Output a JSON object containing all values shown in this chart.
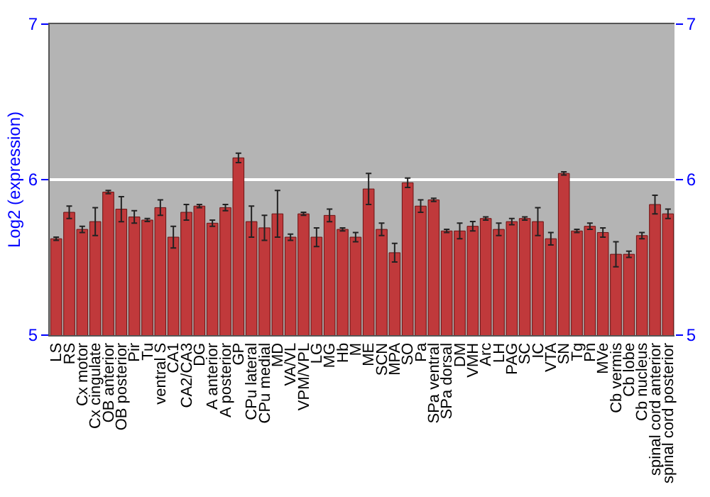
{
  "chart_data": {
    "type": "bar",
    "ylabel": "Log2 (expression)",
    "categories": [
      "LS",
      "RS",
      "Cx motor",
      "Cx cingulate",
      "OB anterior",
      "OB posterior",
      "Pir",
      "Tu",
      "ventral S",
      "CA1",
      "CA2/CA3",
      "DG",
      "A anterior",
      "A posterior",
      "GP",
      "CPu lateral",
      "CPu medial",
      "MD",
      "VA/VL",
      "VPM/VPL",
      "LG",
      "MG",
      "Hb",
      "M",
      "ME",
      "SCN",
      "MPA",
      "SO",
      "Pa",
      "SPa ventral",
      "SPa dorsal",
      "DM",
      "VMH",
      "Arc",
      "LH",
      "PAG",
      "SC",
      "IC",
      "VTA",
      "SN",
      "Tg",
      "Pn",
      "MVe",
      "Cb vermis",
      "Cb lobe",
      "Cb nucleus",
      "spinal cord anterior",
      "spinal cord posterior"
    ],
    "values": [
      5.62,
      5.79,
      5.68,
      5.73,
      5.92,
      5.81,
      5.76,
      5.74,
      5.82,
      5.63,
      5.79,
      5.83,
      5.72,
      5.82,
      6.14,
      5.73,
      5.69,
      5.78,
      5.63,
      5.78,
      5.63,
      5.77,
      5.68,
      5.63,
      5.94,
      5.68,
      5.53,
      5.98,
      5.83,
      5.87,
      5.67,
      5.67,
      5.7,
      5.75,
      5.68,
      5.73,
      5.75,
      5.73,
      5.62,
      6.04,
      5.67,
      5.7,
      5.66,
      5.52,
      5.52,
      5.64,
      5.84,
      5.78
    ],
    "errors": [
      0.01,
      0.04,
      0.02,
      0.09,
      0.01,
      0.08,
      0.04,
      0.01,
      0.05,
      0.07,
      0.05,
      0.01,
      0.02,
      0.02,
      0.03,
      0.1,
      0.08,
      0.15,
      0.02,
      0.01,
      0.06,
      0.04,
      0.01,
      0.03,
      0.1,
      0.04,
      0.06,
      0.03,
      0.04,
      0.01,
      0.01,
      0.05,
      0.03,
      0.01,
      0.04,
      0.02,
      0.01,
      0.09,
      0.04,
      0.01,
      0.01,
      0.02,
      0.03,
      0.08,
      0.02,
      0.02,
      0.06,
      0.03
    ],
    "color": "#c0393b",
    "ylim": [
      5,
      7
    ],
    "yticks": [
      5,
      6,
      7
    ],
    "y2lim": [
      5,
      7
    ],
    "y2ticks": [
      5,
      6,
      7
    ],
    "grid": "y"
  }
}
